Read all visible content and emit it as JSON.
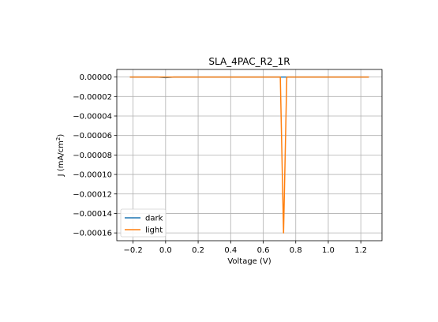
{
  "chart_data": {
    "type": "line",
    "title": "SLA_4PAC_R2_1R",
    "xlabel": "Voltage (V)",
    "ylabel_main": "J (mA/cm",
    "ylabel_sup": "2",
    "ylabel_end": ")",
    "xlim": [
      -0.3,
      1.33
    ],
    "ylim": [
      -0.000168,
      7.8e-06
    ],
    "x_ticks": [
      -0.2,
      0.0,
      0.2,
      0.4,
      0.6,
      0.8,
      1.0,
      1.2
    ],
    "x_tick_labels": [
      "−0.2",
      "0.0",
      "0.2",
      "0.4",
      "0.6",
      "0.8",
      "1.0",
      "1.2"
    ],
    "y_ticks": [
      0,
      -2e-05,
      -4e-05,
      -6e-05,
      -8e-05,
      -0.0001,
      -0.00012,
      -0.00014,
      -0.00016
    ],
    "y_tick_labels": [
      "0.00000",
      "−0.00002",
      "−0.00004",
      "−0.00006",
      "−0.00008",
      "−0.00010",
      "−0.00012",
      "−0.00014",
      "−0.00016"
    ],
    "grid": true,
    "legend_position": "lower-left",
    "series": [
      {
        "name": "dark",
        "color": "#1f77b4",
        "x": [
          -0.22,
          -0.05,
          0.0,
          0.05,
          0.7,
          1.25
        ],
        "y": [
          0,
          0,
          -6e-07,
          0,
          0,
          0
        ]
      },
      {
        "name": "light",
        "color": "#ff7f0e",
        "x": [
          -0.22,
          0.7,
          0.705,
          0.725,
          0.745,
          0.75,
          1.25
        ],
        "y": [
          0,
          0,
          0,
          -0.00016,
          0,
          0,
          0
        ]
      }
    ]
  }
}
